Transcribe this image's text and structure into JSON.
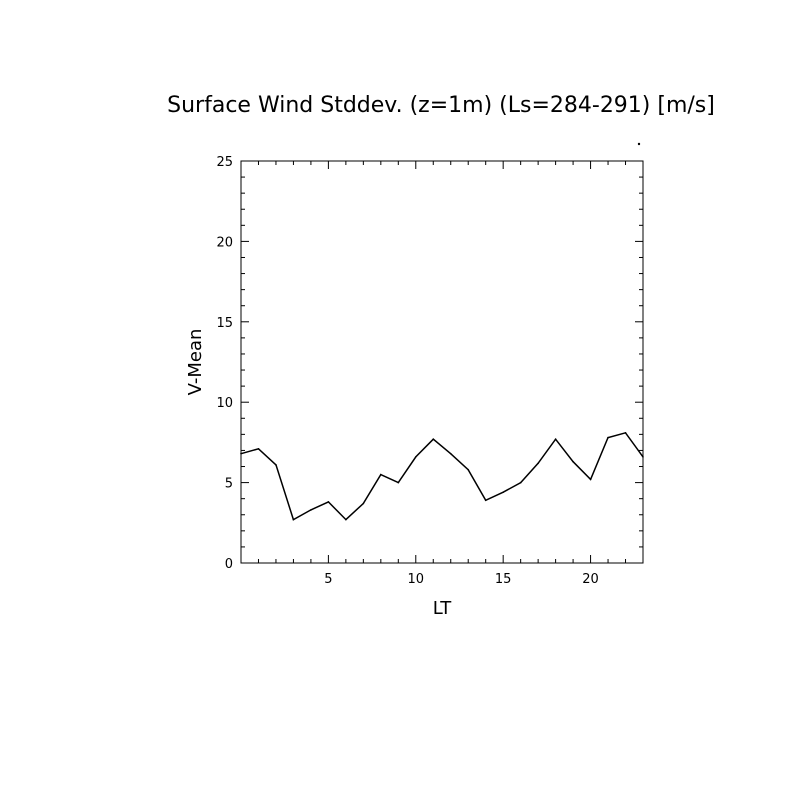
{
  "chart_data": {
    "type": "line",
    "title": "Surface Wind Stddev. (z=1m) (Ls=284-291) [m/s]",
    "xlabel": "LT",
    "ylabel": "V-Mean",
    "xlim": [
      0,
      23
    ],
    "ylim": [
      0,
      25
    ],
    "x_major_ticks": [
      5,
      10,
      15,
      20
    ],
    "y_major_ticks": [
      0,
      5,
      10,
      15,
      20,
      25
    ],
    "x_tick_labels": [
      "5",
      "10",
      "15",
      "20"
    ],
    "y_tick_labels": [
      "0",
      "5",
      "10",
      "15",
      "20",
      "25"
    ],
    "grid": false,
    "line_color": "#000000",
    "series": [
      {
        "x": [
          0,
          1,
          2,
          3,
          4,
          5,
          6,
          7,
          8,
          9,
          10,
          11,
          12,
          13,
          14,
          15,
          16,
          17,
          18,
          19,
          20,
          21,
          22,
          23
        ],
        "values": [
          6.8,
          7.1,
          6.1,
          2.7,
          3.3,
          3.8,
          2.7,
          3.7,
          5.5,
          5.0,
          6.6,
          7.7,
          6.8,
          5.8,
          3.9,
          4.4,
          5.0,
          6.2,
          7.7,
          6.3,
          5.2,
          7.8,
          8.1,
          6.6
        ]
      }
    ]
  }
}
